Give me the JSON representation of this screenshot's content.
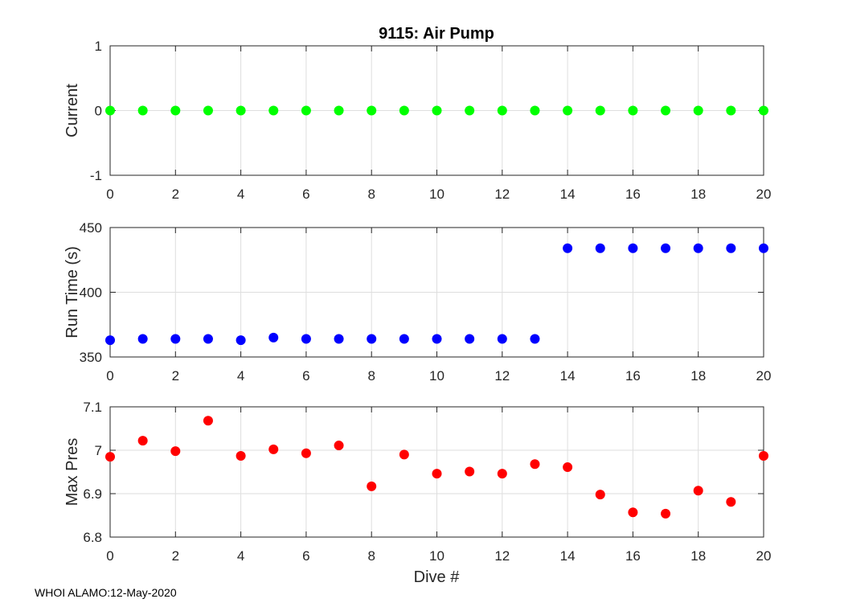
{
  "title": "9115: Air Pump",
  "xlabel": "Dive #",
  "footer": "WHOI ALAMO:12-May-2020",
  "colors": {
    "axis": "#262626",
    "grid": "#dedede",
    "current": "#00ff00",
    "runtime": "#0000ff",
    "pressure": "#ff0000"
  },
  "chart_data": [
    {
      "type": "scatter",
      "name": "current",
      "ylabel": "Current",
      "xlim": [
        0,
        20
      ],
      "ylim": [
        -1,
        1
      ],
      "xticks": [
        0,
        2,
        4,
        6,
        8,
        10,
        12,
        14,
        16,
        18,
        20
      ],
      "yticks": [
        -1,
        0,
        1
      ],
      "grid": true,
      "color": "#00ff00",
      "x": [
        0,
        1,
        2,
        3,
        4,
        5,
        6,
        7,
        8,
        9,
        10,
        11,
        12,
        13,
        14,
        15,
        16,
        17,
        18,
        19,
        20
      ],
      "y": [
        0,
        0,
        0,
        0,
        0,
        0,
        0,
        0,
        0,
        0,
        0,
        0,
        0,
        0,
        0,
        0,
        0,
        0,
        0,
        0,
        0
      ]
    },
    {
      "type": "scatter",
      "name": "runtime",
      "ylabel": "Run Time (s)",
      "xlim": [
        0,
        20
      ],
      "ylim": [
        350,
        450
      ],
      "xticks": [
        0,
        2,
        4,
        6,
        8,
        10,
        12,
        14,
        16,
        18,
        20
      ],
      "yticks": [
        350,
        400,
        450
      ],
      "grid": true,
      "color": "#0000ff",
      "x": [
        0,
        1,
        2,
        3,
        4,
        5,
        6,
        7,
        8,
        9,
        10,
        11,
        12,
        13,
        14,
        15,
        16,
        17,
        18,
        19,
        20
      ],
      "y": [
        363,
        364,
        364,
        364,
        363,
        365,
        364,
        364,
        364,
        364,
        364,
        364,
        364,
        364,
        434,
        434,
        434,
        434,
        434,
        434,
        434
      ]
    },
    {
      "type": "scatter",
      "name": "maxpres",
      "ylabel": "Max Pres",
      "xlim": [
        0,
        20
      ],
      "ylim": [
        6.8,
        7.1
      ],
      "xticks": [
        0,
        2,
        4,
        6,
        8,
        10,
        12,
        14,
        16,
        18,
        20
      ],
      "yticks": [
        6.8,
        6.9,
        7,
        7.1
      ],
      "grid": true,
      "color": "#ff0000",
      "x": [
        0,
        1,
        2,
        3,
        4,
        5,
        6,
        7,
        8,
        9,
        10,
        11,
        12,
        13,
        14,
        15,
        16,
        17,
        18,
        19,
        20
      ],
      "y": [
        6.985,
        7.022,
        6.998,
        7.068,
        6.987,
        7.002,
        6.993,
        7.011,
        6.917,
        6.99,
        6.946,
        6.951,
        6.946,
        6.968,
        6.961,
        6.898,
        6.857,
        6.854,
        6.907,
        6.881,
        6.987
      ]
    }
  ]
}
